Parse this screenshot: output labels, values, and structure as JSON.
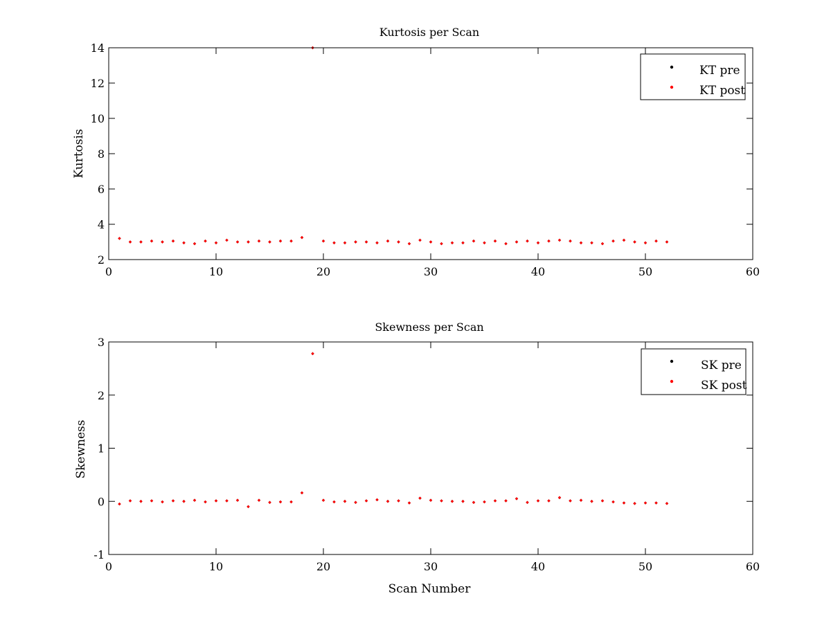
{
  "colors": {
    "pre": "#000000",
    "post": "#ff0000",
    "axes": "#000000",
    "background": "#ffffff"
  },
  "chart_data": [
    {
      "type": "scatter",
      "title": "Kurtosis per Scan",
      "xlabel": "",
      "ylabel": "Kurtosis",
      "xlim": [
        0,
        60
      ],
      "ylim": [
        2,
        14
      ],
      "xticks": [
        0,
        10,
        20,
        30,
        40,
        50,
        60
      ],
      "yticks": [
        2,
        4,
        6,
        8,
        10,
        12,
        14
      ],
      "grid": false,
      "legend_position": "top-right",
      "marker": "dot",
      "series": [
        {
          "name": "KT pre",
          "color": "#000000",
          "x": [
            1,
            2,
            3,
            4,
            5,
            6,
            7,
            8,
            9,
            10,
            11,
            12,
            13,
            14,
            15,
            16,
            17,
            18,
            19,
            20,
            21,
            22,
            23,
            24,
            25,
            26,
            27,
            28,
            29,
            30,
            31,
            32,
            33,
            34,
            35,
            36,
            37,
            38,
            39,
            40,
            41,
            42,
            43,
            44,
            45,
            46,
            47,
            48,
            49,
            50,
            51,
            52
          ],
          "y": [
            3.2,
            3.0,
            3.0,
            3.05,
            3.0,
            3.05,
            2.95,
            2.9,
            3.05,
            2.95,
            3.1,
            3.0,
            3.0,
            3.05,
            3.0,
            3.05,
            3.05,
            3.25,
            14.0,
            3.05,
            2.95,
            2.95,
            3.0,
            3.0,
            2.95,
            3.05,
            3.0,
            2.9,
            3.1,
            3.0,
            2.9,
            2.95,
            2.95,
            3.05,
            2.95,
            3.05,
            2.9,
            3.0,
            3.05,
            2.95,
            3.05,
            3.1,
            3.05,
            2.95,
            2.95,
            2.9,
            3.05,
            3.1,
            3.0,
            2.95,
            3.05,
            3.0
          ]
        },
        {
          "name": "KT post",
          "color": "#ff0000",
          "x": [
            1,
            2,
            3,
            4,
            5,
            6,
            7,
            8,
            9,
            10,
            11,
            12,
            13,
            14,
            15,
            16,
            17,
            18,
            19,
            20,
            21,
            22,
            23,
            24,
            25,
            26,
            27,
            28,
            29,
            30,
            31,
            32,
            33,
            34,
            35,
            36,
            37,
            38,
            39,
            40,
            41,
            42,
            43,
            44,
            45,
            46,
            47,
            48,
            49,
            50,
            51,
            52
          ],
          "y": [
            3.2,
            3.0,
            3.0,
            3.05,
            3.0,
            3.05,
            2.95,
            2.9,
            3.05,
            2.95,
            3.1,
            3.0,
            3.0,
            3.05,
            3.0,
            3.05,
            3.05,
            3.25,
            14.0,
            3.05,
            2.95,
            2.95,
            3.0,
            3.0,
            2.95,
            3.05,
            3.0,
            2.9,
            3.1,
            3.0,
            2.9,
            2.95,
            2.95,
            3.05,
            2.95,
            3.05,
            2.9,
            3.0,
            3.05,
            2.95,
            3.05,
            3.1,
            3.05,
            2.95,
            2.95,
            2.9,
            3.05,
            3.1,
            3.0,
            2.95,
            3.05,
            3.0
          ]
        }
      ]
    },
    {
      "type": "scatter",
      "title": "Skewness per Scan",
      "xlabel": "Scan Number",
      "ylabel": "Skewness",
      "xlim": [
        0,
        60
      ],
      "ylim": [
        -1,
        3
      ],
      "xticks": [
        0,
        10,
        20,
        30,
        40,
        50,
        60
      ],
      "yticks": [
        -1,
        0,
        1,
        2,
        3
      ],
      "grid": false,
      "legend_position": "top-right",
      "marker": "dot",
      "series": [
        {
          "name": "SK pre",
          "color": "#000000",
          "x": [
            1,
            2,
            3,
            4,
            5,
            6,
            7,
            8,
            9,
            10,
            11,
            12,
            13,
            14,
            15,
            16,
            17,
            18,
            19,
            20,
            21,
            22,
            23,
            24,
            25,
            26,
            27,
            28,
            29,
            30,
            31,
            32,
            33,
            34,
            35,
            36,
            37,
            38,
            39,
            40,
            41,
            42,
            43,
            44,
            45,
            46,
            47,
            48,
            49,
            50,
            51,
            52
          ],
          "y": [
            -0.05,
            0.01,
            0.0,
            0.01,
            -0.01,
            0.01,
            0.0,
            0.02,
            -0.01,
            0.01,
            0.01,
            0.02,
            -0.1,
            0.02,
            -0.02,
            -0.01,
            -0.01,
            0.16,
            2.78,
            0.02,
            -0.01,
            0.0,
            -0.02,
            0.01,
            0.03,
            0.0,
            0.01,
            -0.03,
            0.06,
            0.02,
            0.01,
            0.0,
            0.0,
            -0.02,
            -0.01,
            0.01,
            0.01,
            0.05,
            -0.02,
            0.01,
            0.01,
            0.07,
            0.01,
            0.02,
            0.0,
            0.01,
            -0.01,
            -0.03,
            -0.04,
            -0.03,
            -0.03,
            -0.04
          ]
        },
        {
          "name": "SK post",
          "color": "#ff0000",
          "x": [
            1,
            2,
            3,
            4,
            5,
            6,
            7,
            8,
            9,
            10,
            11,
            12,
            13,
            14,
            15,
            16,
            17,
            18,
            19,
            20,
            21,
            22,
            23,
            24,
            25,
            26,
            27,
            28,
            29,
            30,
            31,
            32,
            33,
            34,
            35,
            36,
            37,
            38,
            39,
            40,
            41,
            42,
            43,
            44,
            45,
            46,
            47,
            48,
            49,
            50,
            51,
            52
          ],
          "y": [
            -0.05,
            0.01,
            0.0,
            0.01,
            -0.01,
            0.01,
            0.0,
            0.02,
            -0.01,
            0.01,
            0.01,
            0.02,
            -0.1,
            0.02,
            -0.02,
            -0.01,
            -0.01,
            0.16,
            2.78,
            0.02,
            -0.01,
            0.0,
            -0.02,
            0.01,
            0.03,
            0.0,
            0.01,
            -0.03,
            0.06,
            0.02,
            0.01,
            0.0,
            0.0,
            -0.02,
            -0.01,
            0.01,
            0.01,
            0.05,
            -0.02,
            0.01,
            0.01,
            0.07,
            0.01,
            0.02,
            0.0,
            0.01,
            -0.01,
            -0.03,
            -0.04,
            -0.03,
            -0.03,
            -0.04
          ]
        }
      ]
    }
  ]
}
